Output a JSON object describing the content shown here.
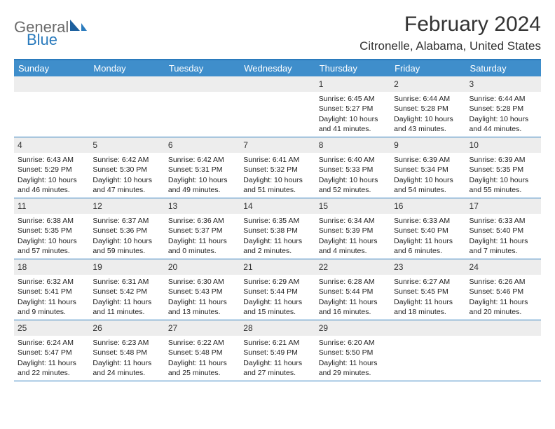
{
  "logo": {
    "general": "General",
    "blue": "Blue"
  },
  "title": "February 2024",
  "location": "Citronelle, Alabama, United States",
  "header_color": "#3f8ecb",
  "border_color": "#2b7bbd",
  "weekdays": [
    "Sunday",
    "Monday",
    "Tuesday",
    "Wednesday",
    "Thursday",
    "Friday",
    "Saturday"
  ],
  "weeks": [
    [
      null,
      null,
      null,
      null,
      {
        "n": "1",
        "sr": "6:45 AM",
        "ss": "5:27 PM",
        "dl": "10 hours and 41 minutes."
      },
      {
        "n": "2",
        "sr": "6:44 AM",
        "ss": "5:28 PM",
        "dl": "10 hours and 43 minutes."
      },
      {
        "n": "3",
        "sr": "6:44 AM",
        "ss": "5:28 PM",
        "dl": "10 hours and 44 minutes."
      }
    ],
    [
      {
        "n": "4",
        "sr": "6:43 AM",
        "ss": "5:29 PM",
        "dl": "10 hours and 46 minutes."
      },
      {
        "n": "5",
        "sr": "6:42 AM",
        "ss": "5:30 PM",
        "dl": "10 hours and 47 minutes."
      },
      {
        "n": "6",
        "sr": "6:42 AM",
        "ss": "5:31 PM",
        "dl": "10 hours and 49 minutes."
      },
      {
        "n": "7",
        "sr": "6:41 AM",
        "ss": "5:32 PM",
        "dl": "10 hours and 51 minutes."
      },
      {
        "n": "8",
        "sr": "6:40 AM",
        "ss": "5:33 PM",
        "dl": "10 hours and 52 minutes."
      },
      {
        "n": "9",
        "sr": "6:39 AM",
        "ss": "5:34 PM",
        "dl": "10 hours and 54 minutes."
      },
      {
        "n": "10",
        "sr": "6:39 AM",
        "ss": "5:35 PM",
        "dl": "10 hours and 55 minutes."
      }
    ],
    [
      {
        "n": "11",
        "sr": "6:38 AM",
        "ss": "5:35 PM",
        "dl": "10 hours and 57 minutes."
      },
      {
        "n": "12",
        "sr": "6:37 AM",
        "ss": "5:36 PM",
        "dl": "10 hours and 59 minutes."
      },
      {
        "n": "13",
        "sr": "6:36 AM",
        "ss": "5:37 PM",
        "dl": "11 hours and 0 minutes."
      },
      {
        "n": "14",
        "sr": "6:35 AM",
        "ss": "5:38 PM",
        "dl": "11 hours and 2 minutes."
      },
      {
        "n": "15",
        "sr": "6:34 AM",
        "ss": "5:39 PM",
        "dl": "11 hours and 4 minutes."
      },
      {
        "n": "16",
        "sr": "6:33 AM",
        "ss": "5:40 PM",
        "dl": "11 hours and 6 minutes."
      },
      {
        "n": "17",
        "sr": "6:33 AM",
        "ss": "5:40 PM",
        "dl": "11 hours and 7 minutes."
      }
    ],
    [
      {
        "n": "18",
        "sr": "6:32 AM",
        "ss": "5:41 PM",
        "dl": "11 hours and 9 minutes."
      },
      {
        "n": "19",
        "sr": "6:31 AM",
        "ss": "5:42 PM",
        "dl": "11 hours and 11 minutes."
      },
      {
        "n": "20",
        "sr": "6:30 AM",
        "ss": "5:43 PM",
        "dl": "11 hours and 13 minutes."
      },
      {
        "n": "21",
        "sr": "6:29 AM",
        "ss": "5:44 PM",
        "dl": "11 hours and 15 minutes."
      },
      {
        "n": "22",
        "sr": "6:28 AM",
        "ss": "5:44 PM",
        "dl": "11 hours and 16 minutes."
      },
      {
        "n": "23",
        "sr": "6:27 AM",
        "ss": "5:45 PM",
        "dl": "11 hours and 18 minutes."
      },
      {
        "n": "24",
        "sr": "6:26 AM",
        "ss": "5:46 PM",
        "dl": "11 hours and 20 minutes."
      }
    ],
    [
      {
        "n": "25",
        "sr": "6:24 AM",
        "ss": "5:47 PM",
        "dl": "11 hours and 22 minutes."
      },
      {
        "n": "26",
        "sr": "6:23 AM",
        "ss": "5:48 PM",
        "dl": "11 hours and 24 minutes."
      },
      {
        "n": "27",
        "sr": "6:22 AM",
        "ss": "5:48 PM",
        "dl": "11 hours and 25 minutes."
      },
      {
        "n": "28",
        "sr": "6:21 AM",
        "ss": "5:49 PM",
        "dl": "11 hours and 27 minutes."
      },
      {
        "n": "29",
        "sr": "6:20 AM",
        "ss": "5:50 PM",
        "dl": "11 hours and 29 minutes."
      },
      null,
      null
    ]
  ],
  "labels": {
    "sunrise": "Sunrise: ",
    "sunset": "Sunset: ",
    "daylight": "Daylight: "
  }
}
